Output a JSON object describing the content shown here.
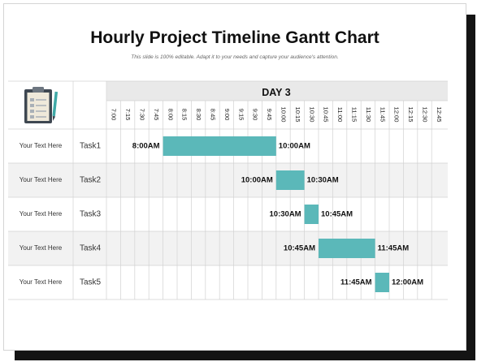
{
  "slide": {
    "title": "Hourly Project Timeline Gantt Chart",
    "subtitle": "This slide is 100% editable. Adapt it to your needs and capture your audience's attention."
  },
  "chart_data": {
    "type": "gantt",
    "day_label": "DAY 3",
    "time_ticks": [
      "7:00",
      "7:15",
      "7:30",
      "7:45",
      "8:00",
      "8:15",
      "8:30",
      "8:45",
      "9:00",
      "9:15",
      "9:30",
      "9:45",
      "10:00",
      "10:15",
      "10:30",
      "10:45",
      "11:00",
      "11:15",
      "11:30",
      "11:45",
      "12:00",
      "12:15",
      "12:30",
      "12:45"
    ],
    "bar_color": "#5bb8b9",
    "rows": [
      {
        "desc": "Your Text Here",
        "task": "Task1",
        "start": "8:00AM",
        "end": "10:00AM"
      },
      {
        "desc": "Your Text Here",
        "task": "Task2",
        "start": "10:00AM",
        "end": "10:30AM"
      },
      {
        "desc": "Your Text Here",
        "task": "Task3",
        "start": "10:30AM",
        "end": "10:45AM"
      },
      {
        "desc": "Your Text Here",
        "task": "Task4",
        "start": "10:45AM",
        "end": "11:45AM"
      },
      {
        "desc": "Your Text Here",
        "task": "Task5",
        "start": "11:45AM",
        "end": "12:00AM"
      }
    ]
  },
  "icons": {
    "header_icon": "clipboard-icon"
  }
}
